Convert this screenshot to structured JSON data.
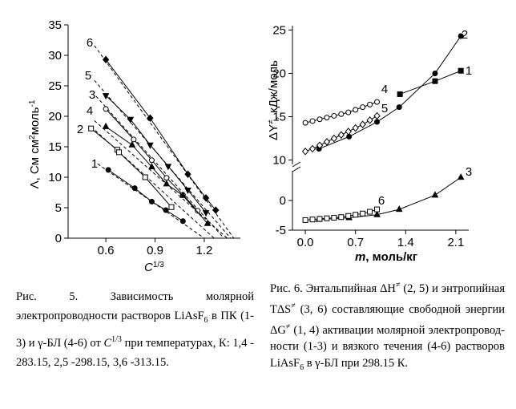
{
  "chart_data": [
    {
      "type": "scatter",
      "xlabel": [
        "C",
        "1/3"
      ],
      "ylabel": [
        "Λ, См см",
        "2",
        "моль",
        "-1"
      ],
      "xlim": [
        0.37,
        1.42
      ],
      "xticks": [
        0.6,
        0.9,
        1.2
      ],
      "ylim": [
        0,
        35
      ],
      "yticks": [
        0,
        5,
        10,
        15,
        20,
        25,
        30,
        35
      ],
      "series": [
        {
          "name": "1",
          "color": "#000000",
          "marker": "filled-circle",
          "x": [
            0.615,
            0.776,
            0.88,
            0.966,
            1.07
          ],
          "values": [
            11.2,
            8.2,
            6.0,
            4.6,
            2.8
          ],
          "fit_x": [
            0.55,
            1.2
          ],
          "fit_y": [
            12.2,
            0
          ]
        },
        {
          "name": "2",
          "color": "#000000",
          "marker": "open-square",
          "x": [
            0.51,
            0.67,
            0.68,
            0.84,
            1.0
          ],
          "values": [
            18.0,
            14.5,
            14.1,
            10.0,
            5.1
          ],
          "fit_x": [
            0.51,
            1.26
          ],
          "fit_y": [
            18.3,
            0
          ]
        },
        {
          "name": "3",
          "color": "#000000",
          "marker": "open-circle",
          "x": [
            0.6,
            0.77,
            0.88,
            0.97,
            1.07,
            1.16
          ],
          "values": [
            21.2,
            16.2,
            12.8,
            9.9,
            7.1,
            4.5
          ],
          "fit_x": [
            0.54,
            1.32
          ],
          "fit_y": [
            23.3,
            0
          ]
        },
        {
          "name": "4",
          "color": "#000000",
          "marker": "filled-triangle-up",
          "x": [
            0.6,
            0.76,
            0.88,
            0.97,
            1.07,
            1.22
          ],
          "values": [
            18.3,
            15.3,
            11.7,
            8.9,
            7.0,
            2.4
          ],
          "fit_x": [
            0.53,
            1.34
          ],
          "fit_y": [
            19.3,
            0
          ]
        },
        {
          "name": "5",
          "color": "#000000",
          "marker": "filled-triangle-down",
          "x": [
            0.6,
            0.75,
            0.87,
            0.98,
            1.1,
            1.21
          ],
          "values": [
            23.4,
            19.5,
            15.3,
            11.8,
            7.9,
            4.2
          ],
          "fit_x": [
            0.53,
            1.36
          ],
          "fit_y": [
            25.9,
            0
          ]
        },
        {
          "name": "6",
          "color": "#000000",
          "marker": "filled-diamond",
          "x": [
            0.6,
            0.87,
            1.1,
            1.21,
            1.27
          ],
          "values": [
            29.3,
            19.7,
            10.5,
            6.6,
            4.6
          ],
          "fit_x": [
            0.53,
            1.38
          ],
          "fit_y": [
            31.6,
            0
          ]
        }
      ]
    },
    {
      "type": "broken-line",
      "xlabel": [
        "m",
        ", моль/кг"
      ],
      "ylabel": [
        "ΔY",
        "≠",
        ", кДж/моль"
      ],
      "xlim": [
        -0.18,
        2.28
      ],
      "xticks": [
        {
          "value": 0,
          "label": "0.0"
        },
        0.7,
        1.4,
        2.1
      ],
      "ylim": [
        -5,
        5
      ],
      "yticks": [
        -5,
        0
      ],
      "ylim_upper": [
        9.5,
        25.5
      ],
      "yticks_upper": [
        10,
        15,
        20,
        25
      ],
      "series": [
        {
          "name": "1",
          "color": "#000000",
          "marker": "filled-square",
          "segment": "upper",
          "x": [
            1.32,
            1.81,
            2.17
          ],
          "values": [
            17.6,
            19.1,
            20.3
          ]
        },
        {
          "name": "2",
          "color": "#000000",
          "marker": "filled-circle",
          "segment": "upper",
          "x": [
            0.19,
            0.61,
            1.0,
            1.31,
            1.81,
            2.17
          ],
          "values": [
            11.3,
            12.7,
            14.4,
            16.1,
            20.0,
            24.3
          ]
        },
        {
          "name": "3",
          "color": "#000000",
          "marker": "filled-triangle-up",
          "segment": "lower",
          "x": [
            0.19,
            0.61,
            1.0,
            1.31,
            1.81,
            2.17
          ],
          "values": [
            -3.2,
            -2.9,
            -2.4,
            -1.5,
            0.9,
            3.9
          ]
        },
        {
          "name": "4",
          "color": "#000000",
          "marker": "open-circle",
          "segment": "upper",
          "x": [
            0,
            0.1,
            0.2,
            0.3,
            0.4,
            0.5,
            0.6,
            0.7,
            0.8,
            0.9,
            1.0
          ],
          "values": [
            14.3,
            14.5,
            14.7,
            14.9,
            15.1,
            15.3,
            15.5,
            15.8,
            16.1,
            16.4,
            16.7
          ]
        },
        {
          "name": "5",
          "color": "#000000",
          "marker": "open-diamond",
          "segment": "upper",
          "x": [
            0,
            0.1,
            0.2,
            0.3,
            0.4,
            0.5,
            0.6,
            0.7,
            0.8,
            0.9,
            1.0
          ],
          "values": [
            11.0,
            11.3,
            11.7,
            12.1,
            12.5,
            12.9,
            13.3,
            13.7,
            14.1,
            14.6,
            15.1
          ]
        },
        {
          "name": "6",
          "color": "#000000",
          "marker": "open-square",
          "segment": "lower",
          "x": [
            0,
            0.1,
            0.2,
            0.3,
            0.4,
            0.5,
            0.6,
            0.7,
            0.8,
            0.9,
            1.0
          ],
          "values": [
            -3.3,
            -3.2,
            -3.1,
            -3.0,
            -2.9,
            -2.8,
            -2.6,
            -2.4,
            -2.2,
            -1.9,
            -1.5
          ]
        }
      ]
    }
  ],
  "captions": [
    [
      "Рис. 5. Зависимость молярной электропроводности растворов LiAsF",
      "6",
      " в ПК (1-3) и γ-БЛ (4-6) от ",
      "C",
      "1/3",
      " при температурах, К: 1,4 - 283.15, 2,5 -298.15, 3,6 -313.15."
    ],
    [
      "Рис. 6. Энтальпийная ΔH",
      "≠",
      " (2, 5) и энтропийная TΔS",
      "≠",
      " (3, 6) составляющие свободной энергии ΔG",
      "≠",
      " (1, 4) активации молярной электропровод-ности (1-3) и вязкого течения (4-6) растворов LiAsF",
      "6",
      " в γ-БЛ при 298.15 К."
    ]
  ]
}
